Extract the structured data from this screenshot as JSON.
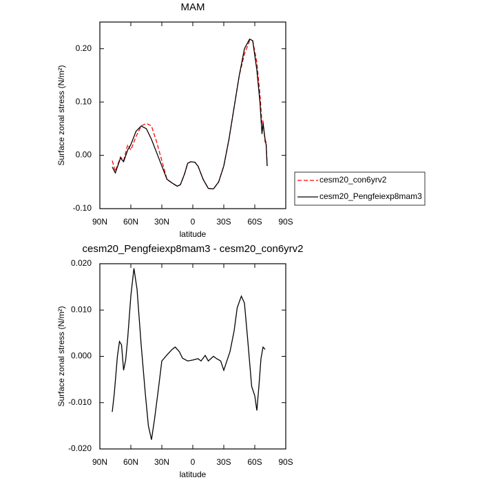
{
  "chart_data": [
    {
      "type": "line",
      "title": "MAM",
      "xlabel": "latitude",
      "ylabel": "Surface zonal stress (N/m²)",
      "x": [
        78,
        75,
        70,
        67,
        63,
        60,
        55,
        50,
        45,
        40,
        35,
        30,
        25,
        20,
        15,
        12,
        8,
        5,
        2,
        -2,
        -5,
        -10,
        -15,
        -20,
        -25,
        -30,
        -35,
        -40,
        -45,
        -50,
        -55,
        -58,
        -62,
        -65,
        -67,
        -68,
        -70,
        -71,
        -72
      ],
      "series": [
        {
          "name": "cesm20_con6yrv2",
          "color": "#ff0000",
          "style": "dashed",
          "values": [
            -0.01,
            -0.03,
            -0.003,
            -0.01,
            0.02,
            0.01,
            0.035,
            0.055,
            0.06,
            0.055,
            0.025,
            -0.01,
            -0.045,
            -0.052,
            -0.058,
            -0.055,
            -0.035,
            -0.015,
            -0.012,
            -0.013,
            -0.02,
            -0.045,
            -0.062,
            -0.063,
            -0.05,
            -0.02,
            0.03,
            0.09,
            0.15,
            0.19,
            0.215,
            0.215,
            0.175,
            0.115,
            0.06,
            0.065,
            0.025,
            0.025,
            -0.02
          ]
        },
        {
          "name": "cesm20_Pengfeiexp8mam3",
          "color": "#000000",
          "style": "solid",
          "values": [
            -0.022,
            -0.033,
            -0.005,
            -0.012,
            0.01,
            0.02,
            0.045,
            0.055,
            0.05,
            0.03,
            0.005,
            -0.02,
            -0.045,
            -0.052,
            -0.058,
            -0.055,
            -0.035,
            -0.015,
            -0.012,
            -0.013,
            -0.02,
            -0.045,
            -0.062,
            -0.063,
            -0.05,
            -0.02,
            0.03,
            0.09,
            0.15,
            0.2,
            0.218,
            0.215,
            0.16,
            0.1,
            0.04,
            0.06,
            0.03,
            0.02,
            -0.02
          ]
        }
      ],
      "xlim": [
        90,
        -90
      ],
      "xticks": [
        {
          "value": 90,
          "label": "90N"
        },
        {
          "value": 60,
          "label": "60N"
        },
        {
          "value": 30,
          "label": "30N"
        },
        0,
        {
          "value": -30,
          "label": "30S"
        },
        {
          "value": -60,
          "label": "60S"
        },
        {
          "value": -90,
          "label": "90S"
        }
      ],
      "ylim": [
        -0.1,
        0.25
      ],
      "yticks": [
        {
          "value": -0.1,
          "label": "-0.10"
        },
        {
          "value": 0,
          "label": "0.00"
        },
        {
          "value": 0.1,
          "label": "0.10"
        },
        {
          "value": 0.2,
          "label": "0.20"
        }
      ],
      "legend": "right"
    },
    {
      "type": "line",
      "title": "cesm20_Pengfeiexp8mam3 - cesm20_con6yrv2",
      "xlabel": "latitude",
      "ylabel": "Surface zonal stress (N/m²)",
      "x": [
        78,
        76,
        73,
        71,
        69,
        67,
        65,
        63,
        60,
        57,
        54,
        50,
        46,
        43,
        40,
        37,
        33,
        30,
        25,
        20,
        17,
        13,
        10,
        5,
        0,
        -5,
        -8,
        -12,
        -15,
        -20,
        -23,
        -27,
        -30,
        -33,
        -36,
        -40,
        -43,
        -47,
        -50,
        -53,
        -57,
        -60,
        -62,
        -64,
        -66,
        -68,
        -70
      ],
      "series": [
        {
          "color": "#000000",
          "style": "solid",
          "values": [
            -0.012,
            -0.008,
            0.0,
            0.0032,
            0.0025,
            -0.003,
            -0.0008,
            0.004,
            0.013,
            0.019,
            0.0145,
            0.0025,
            -0.008,
            -0.015,
            -0.018,
            -0.0135,
            -0.0065,
            -0.001,
            0.0003,
            0.0015,
            0.002,
            0.001,
            -0.0004,
            -0.001,
            -0.0008,
            -0.0005,
            -0.001,
            0.0002,
            -0.001,
            0.0,
            -0.0005,
            -0.001,
            -0.003,
            -0.001,
            0.001,
            0.0055,
            0.0105,
            0.013,
            0.0115,
            0.004,
            -0.0065,
            -0.0085,
            -0.0117,
            -0.0065,
            -0.0005,
            0.002,
            0.0015
          ]
        }
      ],
      "xlim": [
        90,
        -90
      ],
      "xticks": [
        {
          "value": 90,
          "label": "90N"
        },
        {
          "value": 60,
          "label": "60N"
        },
        {
          "value": 30,
          "label": "30N"
        },
        0,
        {
          "value": -30,
          "label": "30S"
        },
        {
          "value": -60,
          "label": "60S"
        },
        {
          "value": -90,
          "label": "90S"
        }
      ],
      "ylim": [
        -0.02,
        0.02
      ],
      "yticks": [
        {
          "value": -0.02,
          "label": "-0.020"
        },
        {
          "value": -0.01,
          "label": "-0.010"
        },
        {
          "value": 0,
          "label": "0.000"
        },
        {
          "value": 0.01,
          "label": "0.010"
        },
        {
          "value": 0.02,
          "label": "0.020"
        }
      ]
    }
  ]
}
